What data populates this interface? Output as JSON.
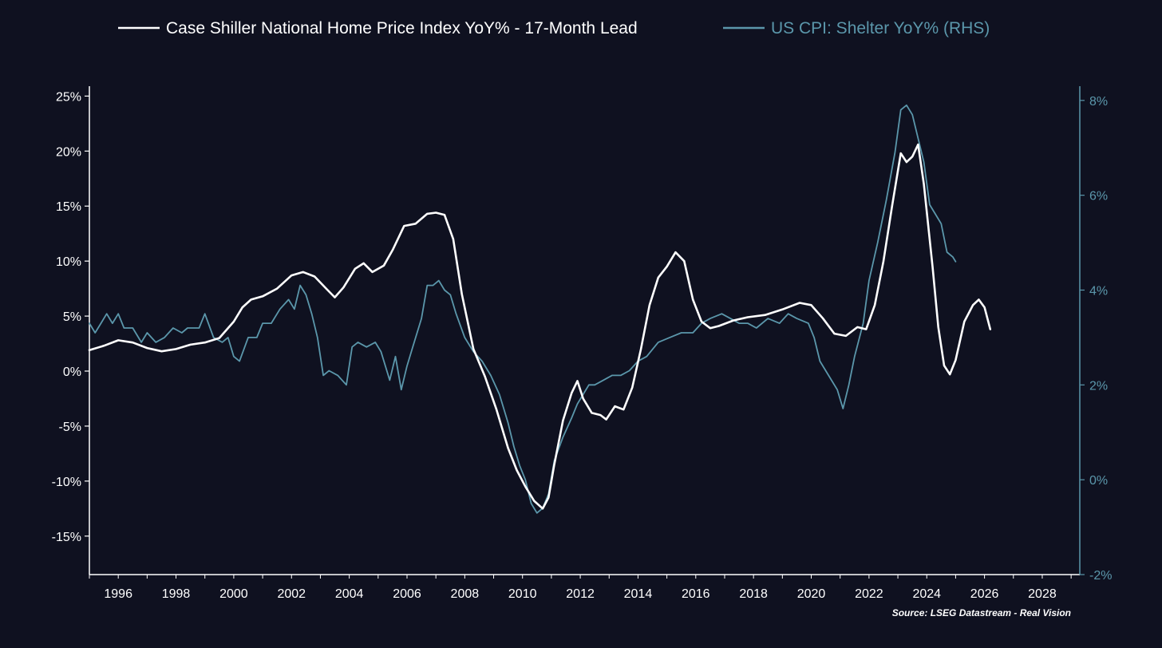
{
  "chart_data": {
    "type": "line",
    "title": "",
    "source": "Source: LSEG Datastream - Real Vision",
    "colors": {
      "background": "#0f1120",
      "primary": "#ffffff",
      "secondary": "#5b97ab",
      "axis_left": "#ffffff",
      "axis_right": "#5b97ab"
    },
    "x_axis": {
      "type": "date",
      "range": [
        1995.0,
        2029.3
      ],
      "ticks": [
        1996,
        1998,
        2000,
        2002,
        2004,
        2006,
        2008,
        2010,
        2012,
        2014,
        2016,
        2018,
        2020,
        2022,
        2024,
        2026,
        2028
      ],
      "tick_labels": [
        "1996",
        "1998",
        "2000",
        "2002",
        "2004",
        "2006",
        "2008",
        "2010",
        "2012",
        "2014",
        "2016",
        "2018",
        "2020",
        "2022",
        "2024",
        "2026",
        "2028"
      ]
    },
    "y_axis_left": {
      "range": [
        -18.5,
        25.9
      ],
      "ticks": [
        25,
        20,
        15,
        10,
        5,
        0,
        -5,
        -10,
        -15
      ],
      "tick_labels": [
        "25%",
        "20%",
        "15%",
        "10%",
        "5%",
        "0%",
        "-5%",
        "-10%",
        "-15%"
      ]
    },
    "y_axis_right": {
      "range": [
        -2.0,
        8.3
      ],
      "ticks": [
        8,
        6,
        4,
        2,
        0,
        -2
      ],
      "tick_labels": [
        "8%",
        "6%",
        "4%",
        "2%",
        "0%",
        "-2%"
      ]
    },
    "grid": false,
    "legend": {
      "position": "top-center"
    },
    "series": [
      {
        "name": "Case Shiller National Home Price Index YoY% - 17-Month Lead",
        "axis": "left",
        "color": "#ffffff",
        "points": [
          [
            1995.0,
            1.9
          ],
          [
            1995.5,
            2.3
          ],
          [
            1996.0,
            2.8
          ],
          [
            1996.5,
            2.6
          ],
          [
            1997.0,
            2.1
          ],
          [
            1997.5,
            1.8
          ],
          [
            1998.0,
            2.0
          ],
          [
            1998.5,
            2.4
          ],
          [
            1999.0,
            2.6
          ],
          [
            1999.5,
            3.0
          ],
          [
            2000.0,
            4.5
          ],
          [
            2000.3,
            5.8
          ],
          [
            2000.6,
            6.5
          ],
          [
            2001.0,
            6.8
          ],
          [
            2001.5,
            7.5
          ],
          [
            2002.0,
            8.7
          ],
          [
            2002.4,
            9.0
          ],
          [
            2002.8,
            8.6
          ],
          [
            2003.2,
            7.5
          ],
          [
            2003.5,
            6.7
          ],
          [
            2003.8,
            7.6
          ],
          [
            2004.2,
            9.3
          ],
          [
            2004.5,
            9.8
          ],
          [
            2004.8,
            9.0
          ],
          [
            2005.2,
            9.6
          ],
          [
            2005.5,
            11.0
          ],
          [
            2005.9,
            13.2
          ],
          [
            2006.3,
            13.4
          ],
          [
            2006.7,
            14.3
          ],
          [
            2007.0,
            14.4
          ],
          [
            2007.3,
            14.2
          ],
          [
            2007.6,
            12.0
          ],
          [
            2007.9,
            7.0
          ],
          [
            2008.3,
            2.0
          ],
          [
            2008.7,
            -0.5
          ],
          [
            2009.1,
            -3.5
          ],
          [
            2009.5,
            -7.0
          ],
          [
            2009.8,
            -9.0
          ],
          [
            2010.1,
            -10.5
          ],
          [
            2010.4,
            -11.8
          ],
          [
            2010.7,
            -12.5
          ],
          [
            2010.9,
            -11.5
          ],
          [
            2011.1,
            -8.5
          ],
          [
            2011.4,
            -4.5
          ],
          [
            2011.7,
            -2.0
          ],
          [
            2011.9,
            -0.9
          ],
          [
            2012.1,
            -2.5
          ],
          [
            2012.4,
            -3.8
          ],
          [
            2012.7,
            -4.0
          ],
          [
            2012.9,
            -4.4
          ],
          [
            2013.2,
            -3.2
          ],
          [
            2013.5,
            -3.5
          ],
          [
            2013.8,
            -1.5
          ],
          [
            2014.1,
            2.0
          ],
          [
            2014.4,
            6.0
          ],
          [
            2014.7,
            8.5
          ],
          [
            2015.0,
            9.5
          ],
          [
            2015.3,
            10.8
          ],
          [
            2015.6,
            10.0
          ],
          [
            2015.9,
            6.5
          ],
          [
            2016.2,
            4.5
          ],
          [
            2016.5,
            3.9
          ],
          [
            2016.8,
            4.1
          ],
          [
            2017.3,
            4.6
          ],
          [
            2017.8,
            4.9
          ],
          [
            2018.4,
            5.1
          ],
          [
            2019.0,
            5.6
          ],
          [
            2019.6,
            6.2
          ],
          [
            2020.0,
            6.0
          ],
          [
            2020.4,
            4.8
          ],
          [
            2020.8,
            3.4
          ],
          [
            2021.2,
            3.2
          ],
          [
            2021.6,
            4.0
          ],
          [
            2021.9,
            3.8
          ],
          [
            2022.2,
            6.0
          ],
          [
            2022.5,
            10.0
          ],
          [
            2022.8,
            15.0
          ],
          [
            2023.1,
            19.8
          ],
          [
            2023.3,
            19.0
          ],
          [
            2023.5,
            19.5
          ],
          [
            2023.7,
            20.6
          ],
          [
            2023.9,
            17.0
          ],
          [
            2024.2,
            9.5
          ],
          [
            2024.4,
            4.0
          ],
          [
            2024.6,
            0.5
          ],
          [
            2024.8,
            -0.3
          ],
          [
            2025.0,
            1.0
          ],
          [
            2025.3,
            4.5
          ],
          [
            2025.6,
            6.0
          ],
          [
            2025.8,
            6.5
          ],
          [
            2026.0,
            5.8
          ],
          [
            2026.2,
            3.8
          ]
        ]
      },
      {
        "name": "US CPI: Shelter YoY% (RHS)",
        "axis": "right",
        "color": "#5b97ab",
        "points": [
          [
            1995.0,
            3.3
          ],
          [
            1995.2,
            3.1
          ],
          [
            1995.4,
            3.3
          ],
          [
            1995.6,
            3.5
          ],
          [
            1995.8,
            3.3
          ],
          [
            1996.0,
            3.5
          ],
          [
            1996.2,
            3.2
          ],
          [
            1996.5,
            3.2
          ],
          [
            1996.8,
            2.9
          ],
          [
            1997.0,
            3.1
          ],
          [
            1997.3,
            2.9
          ],
          [
            1997.6,
            3.0
          ],
          [
            1997.9,
            3.2
          ],
          [
            1998.2,
            3.1
          ],
          [
            1998.4,
            3.2
          ],
          [
            1998.6,
            3.2
          ],
          [
            1998.8,
            3.2
          ],
          [
            1999.0,
            3.5
          ],
          [
            1999.3,
            3.0
          ],
          [
            1999.6,
            2.9
          ],
          [
            1999.8,
            3.0
          ],
          [
            2000.0,
            2.6
          ],
          [
            2000.2,
            2.5
          ],
          [
            2000.5,
            3.0
          ],
          [
            2000.8,
            3.0
          ],
          [
            2001.0,
            3.3
          ],
          [
            2001.3,
            3.3
          ],
          [
            2001.6,
            3.6
          ],
          [
            2001.9,
            3.8
          ],
          [
            2002.1,
            3.6
          ],
          [
            2002.3,
            4.1
          ],
          [
            2002.5,
            3.9
          ],
          [
            2002.7,
            3.5
          ],
          [
            2002.9,
            3.0
          ],
          [
            2003.1,
            2.2
          ],
          [
            2003.3,
            2.3
          ],
          [
            2003.6,
            2.2
          ],
          [
            2003.9,
            2.0
          ],
          [
            2004.1,
            2.8
          ],
          [
            2004.3,
            2.9
          ],
          [
            2004.6,
            2.8
          ],
          [
            2004.9,
            2.9
          ],
          [
            2005.1,
            2.7
          ],
          [
            2005.4,
            2.1
          ],
          [
            2005.6,
            2.6
          ],
          [
            2005.8,
            1.9
          ],
          [
            2006.0,
            2.4
          ],
          [
            2006.2,
            2.8
          ],
          [
            2006.5,
            3.4
          ],
          [
            2006.7,
            4.1
          ],
          [
            2006.9,
            4.1
          ],
          [
            2007.1,
            4.2
          ],
          [
            2007.3,
            4.0
          ],
          [
            2007.5,
            3.9
          ],
          [
            2007.7,
            3.5
          ],
          [
            2008.0,
            3.0
          ],
          [
            2008.3,
            2.7
          ],
          [
            2008.6,
            2.5
          ],
          [
            2008.9,
            2.2
          ],
          [
            2009.2,
            1.8
          ],
          [
            2009.5,
            1.2
          ],
          [
            2009.7,
            0.7
          ],
          [
            2009.9,
            0.3
          ],
          [
            2010.1,
            0.0
          ],
          [
            2010.3,
            -0.5
          ],
          [
            2010.5,
            -0.7
          ],
          [
            2010.7,
            -0.6
          ],
          [
            2010.9,
            -0.3
          ],
          [
            2011.1,
            0.4
          ],
          [
            2011.4,
            0.9
          ],
          [
            2011.7,
            1.3
          ],
          [
            2011.9,
            1.6
          ],
          [
            2012.1,
            1.8
          ],
          [
            2012.3,
            2.0
          ],
          [
            2012.5,
            2.0
          ],
          [
            2012.8,
            2.1
          ],
          [
            2013.1,
            2.2
          ],
          [
            2013.4,
            2.2
          ],
          [
            2013.7,
            2.3
          ],
          [
            2014.0,
            2.5
          ],
          [
            2014.3,
            2.6
          ],
          [
            2014.7,
            2.9
          ],
          [
            2015.1,
            3.0
          ],
          [
            2015.5,
            3.1
          ],
          [
            2015.9,
            3.1
          ],
          [
            2016.2,
            3.3
          ],
          [
            2016.5,
            3.4
          ],
          [
            2016.9,
            3.5
          ],
          [
            2017.2,
            3.4
          ],
          [
            2017.5,
            3.3
          ],
          [
            2017.8,
            3.3
          ],
          [
            2018.1,
            3.2
          ],
          [
            2018.5,
            3.4
          ],
          [
            2018.9,
            3.3
          ],
          [
            2019.2,
            3.5
          ],
          [
            2019.5,
            3.4
          ],
          [
            2019.9,
            3.3
          ],
          [
            2020.1,
            3.0
          ],
          [
            2020.3,
            2.5
          ],
          [
            2020.6,
            2.2
          ],
          [
            2020.9,
            1.9
          ],
          [
            2021.1,
            1.5
          ],
          [
            2021.3,
            2.0
          ],
          [
            2021.5,
            2.6
          ],
          [
            2021.8,
            3.3
          ],
          [
            2022.0,
            4.2
          ],
          [
            2022.3,
            5.0
          ],
          [
            2022.6,
            5.9
          ],
          [
            2022.9,
            6.9
          ],
          [
            2023.1,
            7.8
          ],
          [
            2023.3,
            7.9
          ],
          [
            2023.5,
            7.7
          ],
          [
            2023.7,
            7.2
          ],
          [
            2023.9,
            6.7
          ],
          [
            2024.1,
            5.8
          ],
          [
            2024.3,
            5.6
          ],
          [
            2024.5,
            5.4
          ],
          [
            2024.7,
            4.8
          ],
          [
            2024.9,
            4.7
          ],
          [
            2025.0,
            4.6
          ]
        ]
      }
    ]
  }
}
